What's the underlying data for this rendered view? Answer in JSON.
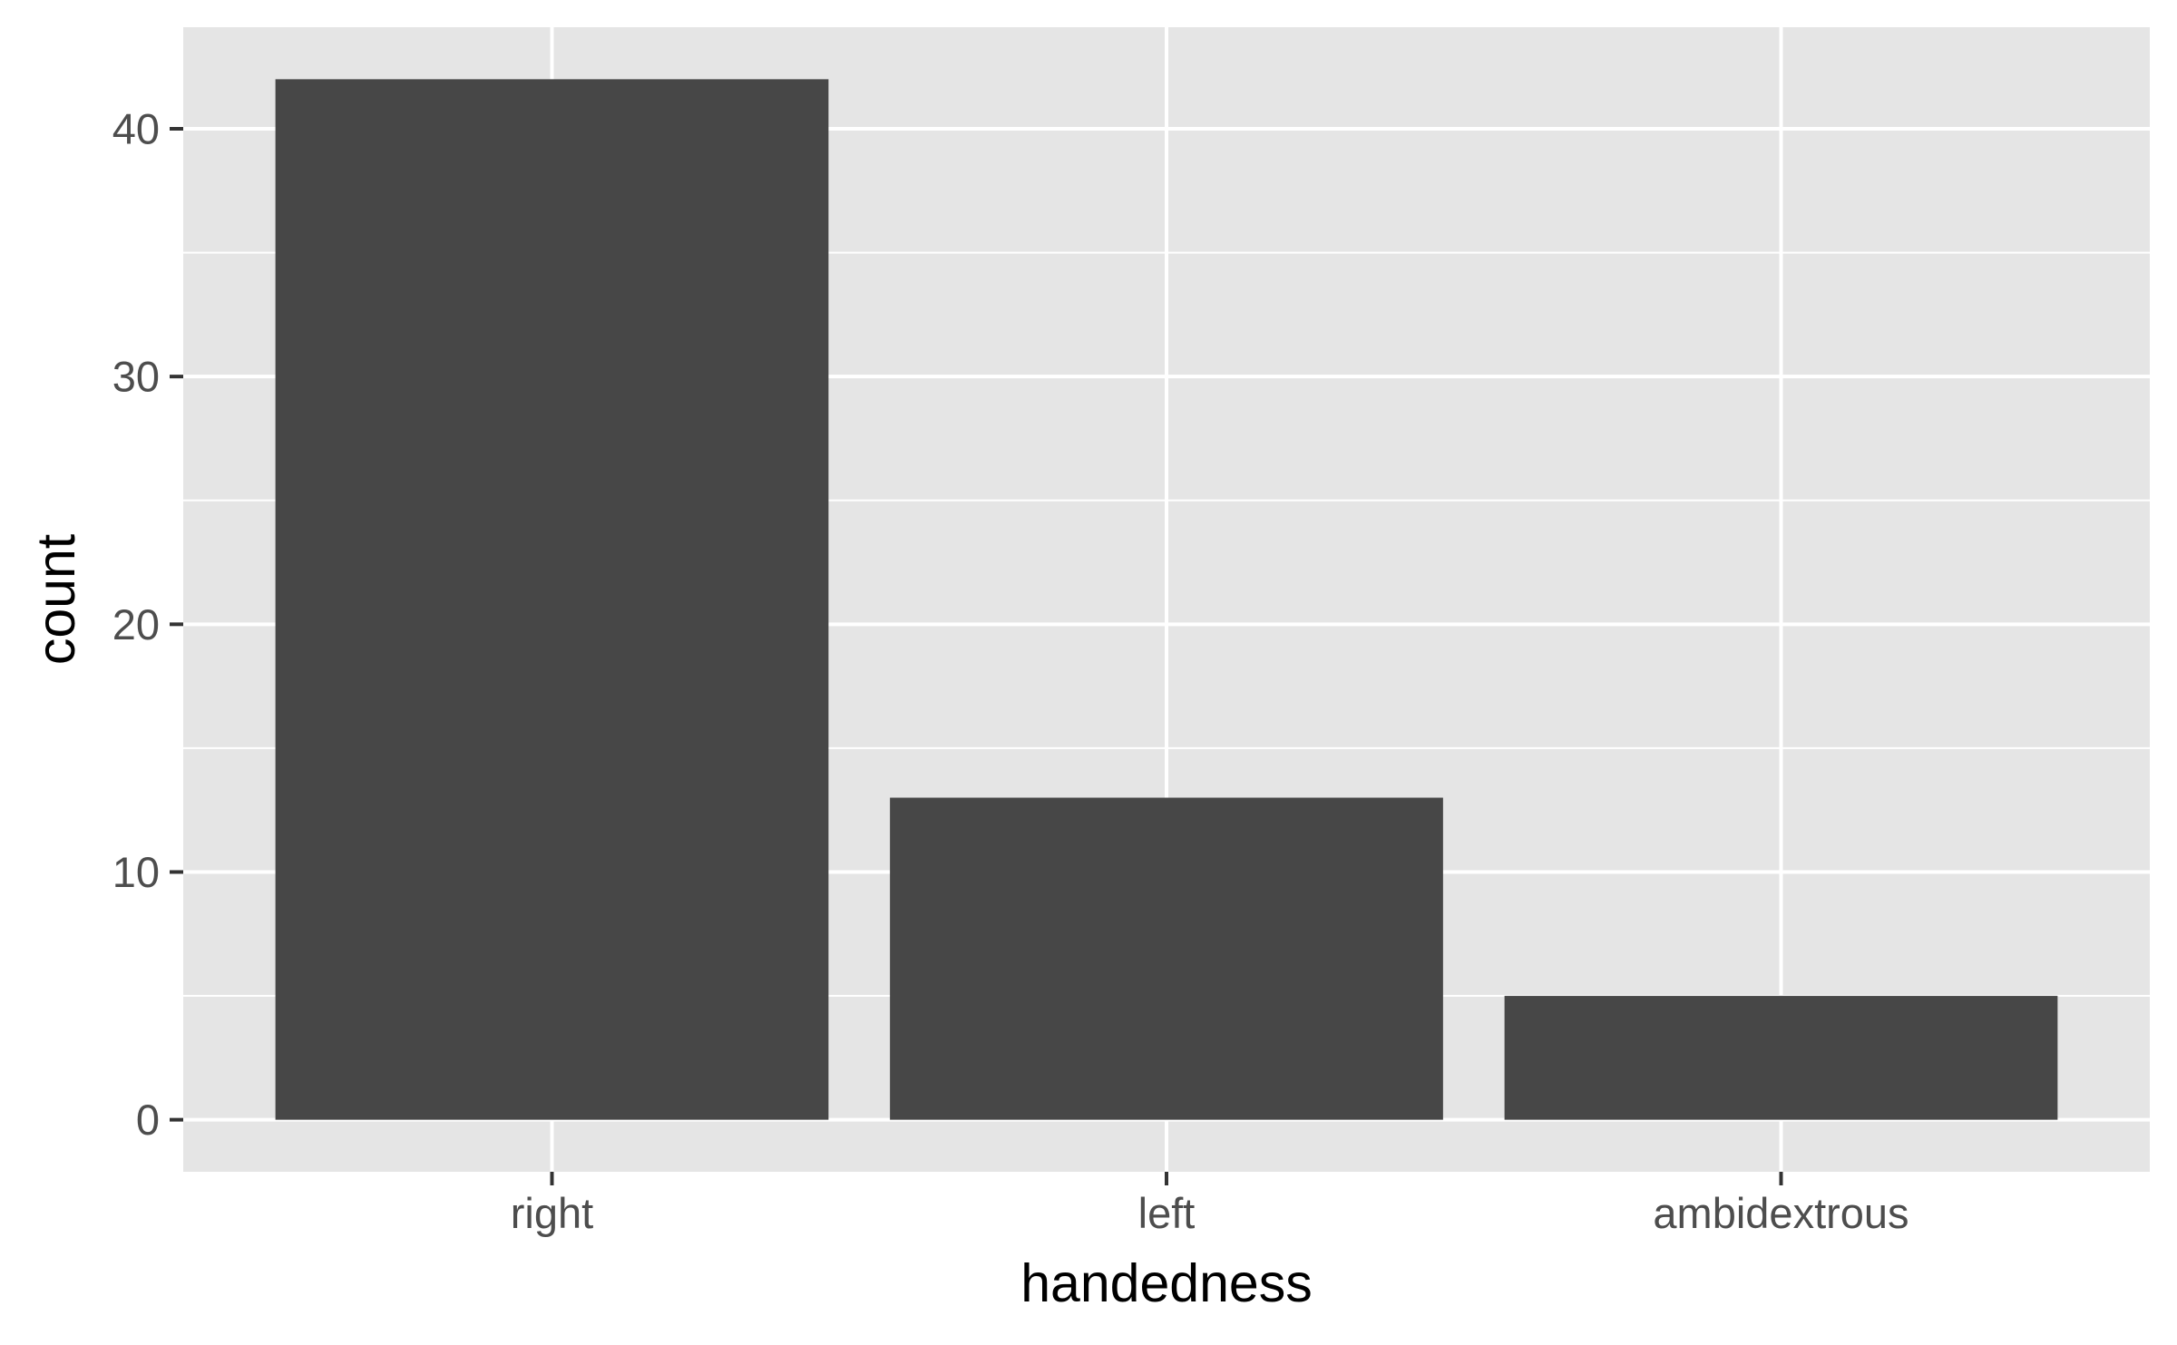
{
  "chart_data": {
    "type": "bar",
    "categories": [
      "right",
      "left",
      "ambidextrous"
    ],
    "values": [
      42,
      13,
      5
    ],
    "xlabel": "handedness",
    "ylabel": "count",
    "ylim": [
      -2.1,
      44.1
    ],
    "yticks": [
      0,
      10,
      20,
      30,
      40
    ],
    "grid": true,
    "legend": "none",
    "colors": {
      "panel": "#e5e5e5",
      "grid": "#ffffff",
      "bar": "#474747",
      "tick_text": "#4d4d4d",
      "axis_title": "#000000",
      "tick_mark": "#333333"
    }
  }
}
